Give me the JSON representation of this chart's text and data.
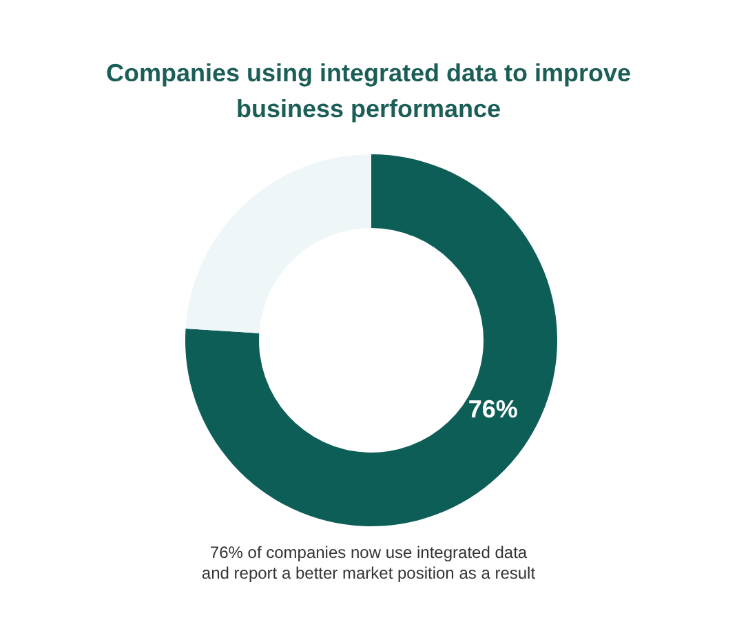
{
  "chart_data": {
    "type": "donut",
    "title": "Companies using integrated data to improve\nbusiness performance",
    "categories": [
      null,
      null
    ],
    "values": [
      76,
      24
    ],
    "colors": [
      "#0e5e58",
      "#eef6f8"
    ],
    "value_labels": [
      "76%",
      null
    ],
    "annotations": [
      "76% of companies now use integrated data\nand report a better market position as a result"
    ]
  }
}
